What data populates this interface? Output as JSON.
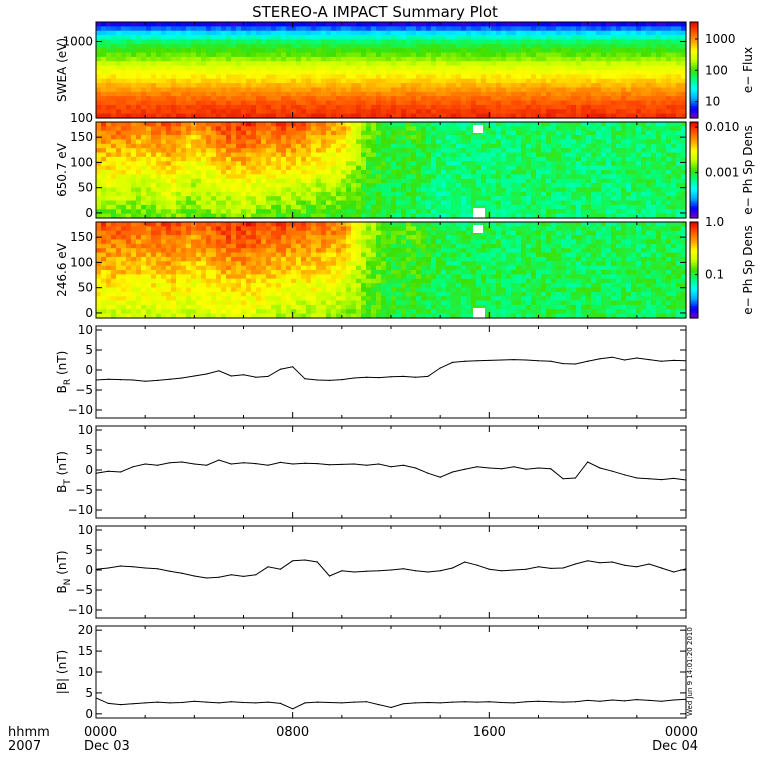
{
  "title": "STEREO-A IMPACT Summary Plot",
  "footer": {
    "row1_label": "hhmm",
    "row2_label": "2007",
    "x_ticks": [
      "0000",
      "0800",
      "1600",
      "0000"
    ],
    "x_dates": [
      "Dec 03",
      "",
      "",
      "Dec 04"
    ]
  },
  "timestamp": "Wed Jun 9 14:01:20 2010",
  "colors": {
    "colormap": [
      "#7800c8",
      "#0000ff",
      "#00aaff",
      "#00ffff",
      "#00ff80",
      "#40e000",
      "#c8ff00",
      "#ffff00",
      "#ffa000",
      "#ff5000",
      "#e00000"
    ],
    "line": "#000000",
    "gap": "#ffffff"
  },
  "chart_data": [
    {
      "type": "heatmap",
      "panel": "swea",
      "ylabel": "SWEA (eV)",
      "ylog": true,
      "ylim": [
        100,
        1800
      ],
      "yticks": [
        {
          "v": 100,
          "label": "100"
        },
        {
          "v": 1000,
          "label": "1000"
        }
      ],
      "colorbar_label": "e− Flux",
      "colorbar_log": true,
      "colorbar_range": [
        3,
        3500
      ],
      "colorbar_ticks": [
        {
          "v": 10,
          "label": "10"
        },
        {
          "v": 100,
          "label": "100"
        },
        {
          "v": 1000,
          "label": "1000"
        }
      ],
      "time_hours": [
        0,
        2,
        4,
        6,
        8,
        10,
        12,
        14,
        16,
        18,
        20,
        22,
        24
      ],
      "spectrum_energy_eV": [
        100,
        150,
        220,
        300,
        450,
        600,
        800,
        1000,
        1200,
        1400,
        1600,
        1800
      ],
      "spectrum_level": [
        0.95,
        0.9,
        0.82,
        0.75,
        0.65,
        0.55,
        0.48,
        0.42,
        0.32,
        0.2,
        0.1,
        0.05
      ]
    },
    {
      "type": "heatmap",
      "panel": "pad650",
      "ylabel": "650.7 eV",
      "ylim": [
        -10,
        180
      ],
      "yticks": [
        {
          "v": 0,
          "label": "0"
        },
        {
          "v": 50,
          "label": "50"
        },
        {
          "v": 100,
          "label": "100"
        },
        {
          "v": 150,
          "label": "150"
        }
      ],
      "colorbar_label": "e− Ph Sp Dens",
      "colorbar_log": true,
      "colorbar_range": [
        0.0001,
        0.013
      ],
      "colorbar_ticks": [
        {
          "v": 0.001,
          "label": "0.001"
        },
        {
          "v": 0.01,
          "label": "0.010"
        }
      ],
      "time_hours": [
        0,
        1,
        2,
        3,
        4,
        5,
        6,
        7,
        8,
        9,
        10,
        11,
        12,
        13,
        14,
        15,
        16,
        17,
        18,
        19,
        20,
        21,
        22,
        23,
        24
      ],
      "level_at_180deg": [
        0.9,
        0.88,
        0.85,
        0.9,
        0.8,
        0.92,
        0.95,
        0.9,
        0.92,
        0.85,
        0.8,
        0.55,
        0.45,
        0.5,
        0.4,
        0.42,
        0.42,
        0.42,
        0.42,
        0.42,
        0.42,
        0.42,
        0.42,
        0.42,
        0.42
      ],
      "level_at_0deg": [
        0.5,
        0.52,
        0.5,
        0.55,
        0.5,
        0.52,
        0.55,
        0.5,
        0.5,
        0.48,
        0.48,
        0.45,
        0.45,
        0.42,
        0.4,
        0.4,
        0.42,
        0.42,
        0.42,
        0.42,
        0.42,
        0.42,
        0.42,
        0.42,
        0.42
      ]
    },
    {
      "type": "heatmap",
      "panel": "pad246",
      "ylabel": "246.6 eV",
      "ylim": [
        -10,
        180
      ],
      "yticks": [
        {
          "v": 0,
          "label": "0"
        },
        {
          "v": 50,
          "label": "50"
        },
        {
          "v": 100,
          "label": "100"
        },
        {
          "v": 150,
          "label": "150"
        }
      ],
      "colorbar_label": "e− Ph Sp Dens",
      "colorbar_log": true,
      "colorbar_range": [
        0.015,
        1.0
      ],
      "colorbar_ticks": [
        {
          "v": 0.1,
          "label": "0.1"
        },
        {
          "v": 1.0,
          "label": "1.0"
        }
      ],
      "time_hours": [
        0,
        1,
        2,
        3,
        4,
        5,
        6,
        7,
        8,
        9,
        10,
        11,
        12,
        13,
        14,
        15,
        16,
        17,
        18,
        19,
        20,
        21,
        22,
        23,
        24
      ],
      "level_at_180deg": [
        0.92,
        0.9,
        0.88,
        0.92,
        0.85,
        0.93,
        0.95,
        0.92,
        0.9,
        0.88,
        0.85,
        0.6,
        0.48,
        0.52,
        0.43,
        0.44,
        0.44,
        0.42,
        0.44,
        0.42,
        0.44,
        0.43,
        0.42,
        0.44,
        0.44
      ],
      "level_at_0deg": [
        0.6,
        0.62,
        0.6,
        0.62,
        0.6,
        0.62,
        0.64,
        0.6,
        0.58,
        0.58,
        0.56,
        0.5,
        0.46,
        0.45,
        0.44,
        0.44,
        0.44,
        0.44,
        0.44,
        0.44,
        0.44,
        0.44,
        0.44,
        0.44,
        0.44
      ]
    },
    {
      "type": "line",
      "panel": "br",
      "ylabel": "B",
      "ylabel_sub": "R",
      "ylabel_unit": "(nT)",
      "ylim": [
        -12,
        11
      ],
      "yticks": [
        {
          "v": -10,
          "label": "−10"
        },
        {
          "v": -5,
          "label": "−5"
        },
        {
          "v": 0,
          "label": "0"
        },
        {
          "v": 5,
          "label": "5"
        },
        {
          "v": 10,
          "label": "10"
        }
      ],
      "x_hours": [
        0,
        0.5,
        1,
        1.5,
        2,
        2.5,
        3,
        3.5,
        4,
        4.5,
        5,
        5.5,
        6,
        6.5,
        7,
        7.5,
        8,
        8.5,
        9,
        9.5,
        10,
        10.5,
        11,
        11.5,
        12,
        12.5,
        13,
        13.5,
        14,
        14.5,
        15,
        15.5,
        16,
        16.5,
        17,
        17.5,
        18,
        18.5,
        19,
        19.5,
        20,
        20.5,
        21,
        21.5,
        22,
        22.5,
        23,
        23.5,
        24
      ],
      "values": [
        -2.5,
        -2.3,
        -2.4,
        -2.5,
        -2.8,
        -2.6,
        -2.3,
        -2.0,
        -1.5,
        -1.0,
        -0.2,
        -1.5,
        -1.2,
        -1.8,
        -1.6,
        0.2,
        0.8,
        -2.2,
        -2.5,
        -2.6,
        -2.4,
        -2.0,
        -1.8,
        -1.9,
        -1.7,
        -1.6,
        -1.8,
        -1.6,
        0.5,
        1.9,
        2.2,
        2.3,
        2.4,
        2.5,
        2.6,
        2.5,
        2.3,
        2.2,
        1.6,
        1.5,
        2.2,
        2.8,
        3.2,
        2.5,
        3.0,
        2.6,
        2.2,
        2.4,
        2.3
      ]
    },
    {
      "type": "line",
      "panel": "bt",
      "ylabel": "B",
      "ylabel_sub": "T",
      "ylabel_unit": "(nT)",
      "ylim": [
        -12,
        11
      ],
      "yticks": [
        {
          "v": -10,
          "label": "−10"
        },
        {
          "v": -5,
          "label": "−5"
        },
        {
          "v": 0,
          "label": "0"
        },
        {
          "v": 5,
          "label": "5"
        },
        {
          "v": 10,
          "label": "10"
        }
      ],
      "x_hours": [
        0,
        0.5,
        1,
        1.5,
        2,
        2.5,
        3,
        3.5,
        4,
        4.5,
        5,
        5.5,
        6,
        6.5,
        7,
        7.5,
        8,
        8.5,
        9,
        9.5,
        10,
        10.5,
        11,
        11.5,
        12,
        12.5,
        13,
        13.5,
        14,
        14.5,
        15,
        15.5,
        16,
        16.5,
        17,
        17.5,
        18,
        18.5,
        19,
        19.5,
        20,
        20.5,
        21,
        21.5,
        22,
        22.5,
        23,
        23.5,
        24
      ],
      "values": [
        -0.8,
        -0.3,
        -0.5,
        0.8,
        1.5,
        1.2,
        1.8,
        2.0,
        1.5,
        1.2,
        2.5,
        1.5,
        1.8,
        1.6,
        1.2,
        1.9,
        1.5,
        1.7,
        1.6,
        1.3,
        1.4,
        1.5,
        1.2,
        1.5,
        0.8,
        1.2,
        0.5,
        -0.8,
        -1.8,
        -0.5,
        0.2,
        0.8,
        0.5,
        0.3,
        0.8,
        0.2,
        0.5,
        0.3,
        -2.2,
        -2.0,
        2.0,
        0.5,
        -0.3,
        -1.2,
        -2.0,
        -2.2,
        -2.4,
        -2.1,
        -2.5
      ]
    },
    {
      "type": "line",
      "panel": "bn",
      "ylabel": "B",
      "ylabel_sub": "N",
      "ylabel_unit": "(nT)",
      "ylim": [
        -12,
        11
      ],
      "yticks": [
        {
          "v": -10,
          "label": "−10"
        },
        {
          "v": -5,
          "label": "−5"
        },
        {
          "v": 0,
          "label": "0"
        },
        {
          "v": 5,
          "label": "5"
        },
        {
          "v": 10,
          "label": "10"
        }
      ],
      "x_hours": [
        0,
        0.5,
        1,
        1.5,
        2,
        2.5,
        3,
        3.5,
        4,
        4.5,
        5,
        5.5,
        6,
        6.5,
        7,
        7.5,
        8,
        8.5,
        9,
        9.5,
        10,
        10.5,
        11,
        11.5,
        12,
        12.5,
        13,
        13.5,
        14,
        14.5,
        15,
        15.5,
        16,
        16.5,
        17,
        17.5,
        18,
        18.5,
        19,
        19.5,
        20,
        20.5,
        21,
        21.5,
        22,
        22.5,
        23,
        23.5,
        24
      ],
      "values": [
        0.2,
        0.5,
        1.0,
        0.8,
        0.5,
        0.3,
        -0.3,
        -0.8,
        -1.5,
        -2.0,
        -1.8,
        -1.2,
        -1.6,
        -1.2,
        0.8,
        0.2,
        2.3,
        2.5,
        2.0,
        -1.5,
        -0.2,
        -0.5,
        -0.3,
        -0.2,
        0.0,
        0.3,
        -0.2,
        -0.5,
        -0.2,
        0.5,
        2.0,
        1.2,
        0.2,
        -0.2,
        0.0,
        0.2,
        0.8,
        0.4,
        0.5,
        1.5,
        2.3,
        1.8,
        2.0,
        1.2,
        0.8,
        1.5,
        0.5,
        -0.5,
        0.3
      ]
    },
    {
      "type": "line",
      "panel": "bmag",
      "ylabel": "|B|",
      "ylabel_unit": "(nT)",
      "ylim": [
        -1,
        21
      ],
      "yticks": [
        {
          "v": 0,
          "label": "0"
        },
        {
          "v": 5,
          "label": "5"
        },
        {
          "v": 10,
          "label": "10"
        },
        {
          "v": 15,
          "label": "15"
        },
        {
          "v": 20,
          "label": "20"
        }
      ],
      "x_hours": [
        0,
        0.5,
        1,
        1.5,
        2,
        2.5,
        3,
        3.5,
        4,
        4.5,
        5,
        5.5,
        6,
        6.5,
        7,
        7.5,
        8,
        8.5,
        9,
        9.5,
        10,
        10.5,
        11,
        11.5,
        12,
        12.5,
        13,
        13.5,
        14,
        14.5,
        15,
        15.5,
        16,
        16.5,
        17,
        17.5,
        18,
        18.5,
        19,
        19.5,
        20,
        20.5,
        21,
        21.5,
        22,
        22.5,
        23,
        23.5,
        24
      ],
      "values": [
        3.8,
        2.5,
        2.2,
        2.4,
        2.6,
        2.8,
        2.6,
        2.7,
        3.0,
        2.8,
        2.6,
        2.9,
        2.7,
        2.6,
        2.8,
        2.5,
        1.2,
        2.6,
        2.8,
        2.7,
        2.6,
        2.8,
        2.9,
        2.2,
        1.5,
        2.4,
        2.6,
        2.7,
        2.6,
        2.8,
        2.9,
        2.8,
        2.9,
        2.7,
        2.6,
        2.9,
        3.0,
        2.9,
        2.8,
        2.9,
        3.2,
        3.0,
        3.3,
        3.1,
        3.4,
        3.2,
        3.0,
        3.3,
        3.5
      ]
    }
  ]
}
